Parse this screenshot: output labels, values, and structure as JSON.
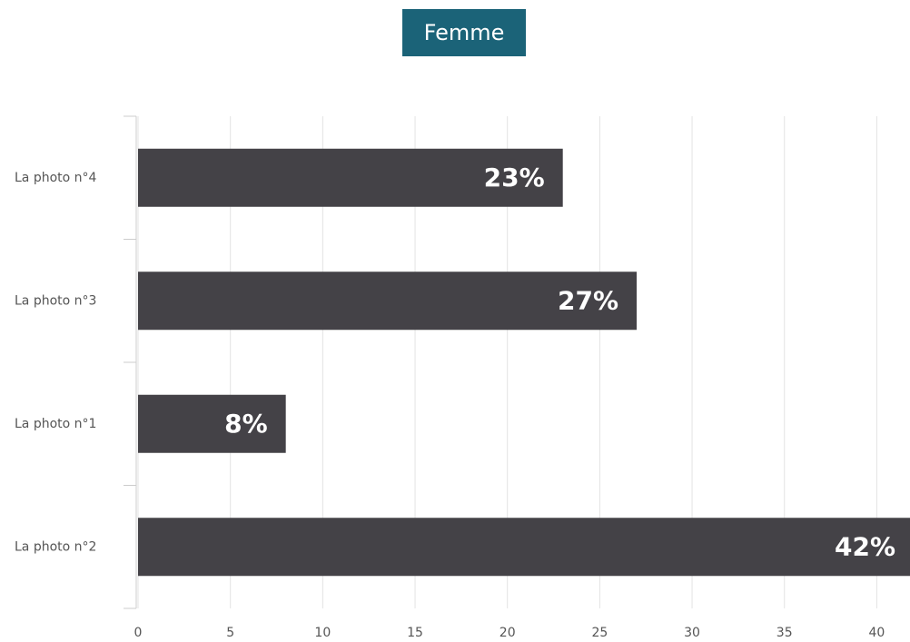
{
  "chart_data": {
    "type": "bar",
    "orientation": "horizontal",
    "title": "Femme",
    "categories": [
      "La photo n°4",
      "La photo n°3",
      "La photo n°1",
      "La photo n°2"
    ],
    "values": [
      23,
      27,
      8,
      42
    ],
    "value_labels": [
      "23%",
      "27%",
      "8%",
      "42%"
    ],
    "color": "#444247",
    "xlim": [
      0,
      41.8
    ],
    "xticks": [
      0,
      5,
      10,
      15,
      20,
      25,
      30,
      35,
      40
    ],
    "grid": true
  }
}
